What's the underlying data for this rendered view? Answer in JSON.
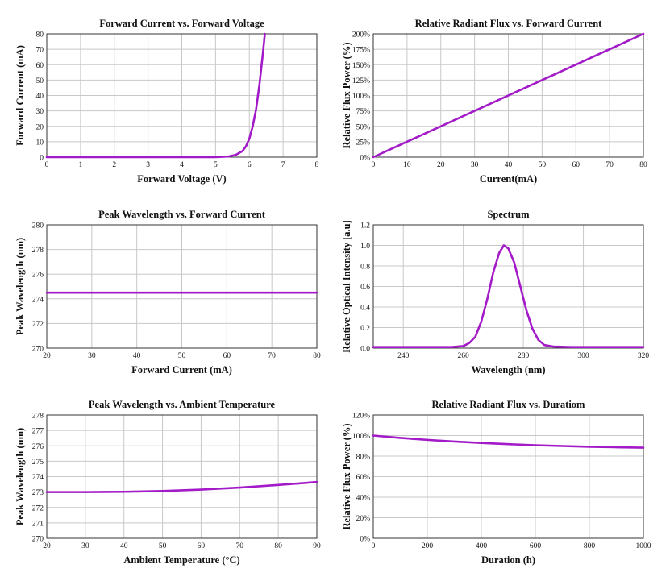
{
  "series_color": "#a31ac8",
  "chart_data": [
    {
      "type": "line",
      "title": "Forward Current vs. Forward Voltage",
      "xlabel": "Forward Voltage (V)",
      "ylabel": "Forward Current (mA)",
      "xlim": [
        0,
        8
      ],
      "ylim": [
        0,
        80
      ],
      "xticks": [
        0,
        1,
        2,
        3,
        4,
        5,
        6,
        7,
        8
      ],
      "yticks": [
        0,
        10,
        20,
        30,
        40,
        50,
        60,
        70,
        80
      ],
      "x": [
        0,
        4.5,
        5.0,
        5.4,
        5.6,
        5.8,
        5.9,
        6.0,
        6.1,
        6.2,
        6.3,
        6.4,
        6.46
      ],
      "y": [
        0,
        0,
        0,
        0.5,
        1.5,
        4,
        7,
        12,
        20,
        31,
        47,
        67,
        80
      ],
      "grid": true
    },
    {
      "type": "line",
      "title": "Relative Radiant Flux vs. Forward Current",
      "xlabel": "Current(mA)",
      "ylabel": "Relative Flux Power (%)",
      "xlim": [
        0,
        80
      ],
      "ylim": [
        0,
        200
      ],
      "xticks": [
        0,
        10,
        20,
        30,
        40,
        50,
        60,
        70,
        80
      ],
      "yticks": [
        0,
        25,
        50,
        75,
        100,
        125,
        150,
        175,
        200
      ],
      "ytick_suffix": "%",
      "x": [
        0,
        80
      ],
      "y": [
        0,
        200
      ],
      "grid": true
    },
    {
      "type": "line",
      "title": "Peak Wavelength vs. Forward Current",
      "xlabel": "Forward Current (mA)",
      "ylabel": "Peak Wavelength (nm)",
      "xlim": [
        20,
        80
      ],
      "ylim": [
        270,
        280
      ],
      "xticks": [
        20,
        30,
        40,
        50,
        60,
        70,
        80
      ],
      "yticks": [
        270,
        272,
        274,
        276,
        278,
        280
      ],
      "x": [
        20,
        40,
        60,
        80
      ],
      "y": [
        274.5,
        274.5,
        274.5,
        274.5
      ],
      "grid": true
    },
    {
      "type": "line",
      "title": "Spectrum",
      "xlabel": "Wavelength (nm)",
      "ylabel": "Relative Optical Intensity [a.u]",
      "xlim": [
        230,
        320
      ],
      "ylim": [
        0,
        1.2
      ],
      "xticks": [
        240,
        260,
        280,
        300,
        320
      ],
      "yticks": [
        0.0,
        0.2,
        0.4,
        0.6,
        0.8,
        1.0,
        1.2
      ],
      "ytick_decimals": 1,
      "x": [
        230,
        250,
        256,
        260,
        262,
        264,
        266,
        268,
        270,
        272,
        273.5,
        275,
        277,
        279,
        281,
        283,
        285,
        287,
        290,
        296,
        320
      ],
      "y": [
        0.01,
        0.01,
        0.01,
        0.02,
        0.05,
        0.11,
        0.26,
        0.48,
        0.74,
        0.93,
        1.0,
        0.97,
        0.83,
        0.6,
        0.37,
        0.19,
        0.08,
        0.03,
        0.015,
        0.01,
        0.01
      ],
      "grid": true
    },
    {
      "type": "line",
      "title": "Peak Wavelength vs. Ambient Temperature",
      "xlabel": "Ambient Temperature (°C)",
      "ylabel": "Peak Wavelength (nm)",
      "xlim": [
        20,
        90
      ],
      "ylim": [
        270,
        278
      ],
      "xticks": [
        20,
        30,
        40,
        50,
        60,
        70,
        80,
        90
      ],
      "yticks": [
        270,
        271,
        272,
        273,
        274,
        275,
        276,
        277,
        278
      ],
      "x": [
        20,
        30,
        40,
        50,
        60,
        70,
        80,
        90
      ],
      "y": [
        273.0,
        273.0,
        273.02,
        273.07,
        273.16,
        273.29,
        273.46,
        273.65
      ],
      "grid": true
    },
    {
      "type": "line",
      "title": "Relative Radiant Flux vs. Duratiom",
      "xlabel": "Duration (h)",
      "ylabel": "Relative Flux Power (%)",
      "xlim": [
        0,
        1000
      ],
      "ylim": [
        0,
        120
      ],
      "xticks": [
        0,
        200,
        400,
        600,
        800,
        1000
      ],
      "yticks": [
        0,
        20,
        40,
        60,
        80,
        100,
        120
      ],
      "ytick_suffix": "%",
      "x": [
        0,
        100,
        200,
        300,
        400,
        500,
        600,
        700,
        800,
        900,
        1000
      ],
      "y": [
        100,
        97.7,
        95.8,
        94.2,
        92.8,
        91.6,
        90.6,
        89.8,
        89.1,
        88.6,
        88.2
      ],
      "grid": true
    }
  ]
}
